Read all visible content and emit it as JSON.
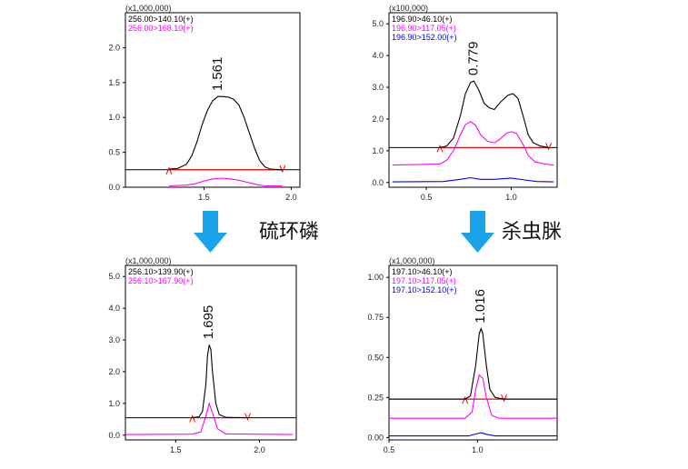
{
  "labels": {
    "compound_left": "硫环磷",
    "compound_right": "杀虫脒"
  },
  "colors": {
    "black": "#000000",
    "magenta": "#ff00ff",
    "blue": "#0000ff",
    "red": "#ff0000",
    "arrow": "#1aa3e8"
  },
  "chart_data": [
    {
      "type": "line",
      "multiplier": "(x1,000,000)",
      "peak_label": "1.561",
      "ylim": [
        0,
        2.5
      ],
      "yticks": [
        "0.0",
        "0.5",
        "1.0",
        "1.5",
        "2.0"
      ],
      "xlim": [
        1.05,
        2.05
      ],
      "xticks": [
        "1.5",
        "2.0"
      ],
      "baseline": 0.25,
      "baseline_span": [
        1.3,
        1.95
      ],
      "series": [
        {
          "name": "256.00>140.10(+)",
          "color": "black",
          "points": [
            [
              1.3,
              0.26
            ],
            [
              1.35,
              0.27
            ],
            [
              1.4,
              0.33
            ],
            [
              1.43,
              0.45
            ],
            [
              1.46,
              0.65
            ],
            [
              1.49,
              0.9
            ],
            [
              1.52,
              1.1
            ],
            [
              1.55,
              1.24
            ],
            [
              1.58,
              1.3
            ],
            [
              1.61,
              1.3
            ],
            [
              1.64,
              1.29
            ],
            [
              1.67,
              1.26
            ],
            [
              1.7,
              1.18
            ],
            [
              1.73,
              1.0
            ],
            [
              1.76,
              0.78
            ],
            [
              1.79,
              0.56
            ],
            [
              1.82,
              0.38
            ],
            [
              1.85,
              0.29
            ],
            [
              1.88,
              0.26
            ],
            [
              1.95,
              0.25
            ]
          ]
        },
        {
          "name": "256.00>168.10(+)",
          "color": "magenta",
          "points": [
            [
              1.3,
              0.02
            ],
            [
              1.4,
              0.03
            ],
            [
              1.45,
              0.05
            ],
            [
              1.5,
              0.09
            ],
            [
              1.55,
              0.12
            ],
            [
              1.6,
              0.13
            ],
            [
              1.65,
              0.12
            ],
            [
              1.7,
              0.1
            ],
            [
              1.75,
              0.07
            ],
            [
              1.8,
              0.04
            ],
            [
              1.85,
              0.02
            ],
            [
              1.95,
              0.02
            ]
          ]
        }
      ]
    },
    {
      "type": "line",
      "multiplier": "(x100,000)",
      "peak_label": "0.779",
      "ylim": [
        -0.15,
        5.35
      ],
      "yticks": [
        "0.0",
        "1.0",
        "2.0",
        "3.0",
        "4.0",
        "5.0"
      ],
      "xlim": [
        0.28,
        1.27
      ],
      "xticks": [
        "0.5",
        "1.0"
      ],
      "baseline": 1.1,
      "baseline_span": [
        0.58,
        1.22
      ],
      "series": [
        {
          "name": "196.90>46.10(+)",
          "color": "black",
          "points": [
            [
              0.58,
              1.1
            ],
            [
              0.62,
              1.15
            ],
            [
              0.66,
              1.4
            ],
            [
              0.7,
              2.1
            ],
            [
              0.73,
              2.8
            ],
            [
              0.76,
              3.15
            ],
            [
              0.78,
              3.2
            ],
            [
              0.81,
              2.9
            ],
            [
              0.84,
              2.5
            ],
            [
              0.87,
              2.35
            ],
            [
              0.9,
              2.3
            ],
            [
              0.94,
              2.55
            ],
            [
              0.98,
              2.75
            ],
            [
              1.01,
              2.8
            ],
            [
              1.04,
              2.65
            ],
            [
              1.07,
              2.1
            ],
            [
              1.1,
              1.5
            ],
            [
              1.13,
              1.25
            ],
            [
              1.17,
              1.15
            ],
            [
              1.22,
              1.1
            ]
          ]
        },
        {
          "name": "196.90>117.05(+)",
          "color": "magenta",
          "points": [
            [
              0.3,
              0.55
            ],
            [
              0.58,
              0.58
            ],
            [
              0.62,
              0.7
            ],
            [
              0.66,
              1.0
            ],
            [
              0.7,
              1.5
            ],
            [
              0.73,
              1.82
            ],
            [
              0.76,
              1.92
            ],
            [
              0.79,
              1.8
            ],
            [
              0.82,
              1.5
            ],
            [
              0.86,
              1.3
            ],
            [
              0.9,
              1.25
            ],
            [
              0.93,
              1.35
            ],
            [
              0.97,
              1.55
            ],
            [
              1.0,
              1.6
            ],
            [
              1.03,
              1.55
            ],
            [
              1.07,
              1.2
            ],
            [
              1.1,
              0.85
            ],
            [
              1.14,
              0.65
            ],
            [
              1.2,
              0.58
            ],
            [
              1.25,
              0.55
            ]
          ]
        },
        {
          "name": "196.90>152.00(+)",
          "color": "blue",
          "points": [
            [
              0.3,
              0.02
            ],
            [
              0.6,
              0.03
            ],
            [
              0.7,
              0.1
            ],
            [
              0.76,
              0.15
            ],
            [
              0.82,
              0.1
            ],
            [
              0.9,
              0.1
            ],
            [
              1.0,
              0.14
            ],
            [
              1.08,
              0.08
            ],
            [
              1.15,
              0.03
            ],
            [
              1.25,
              0.02
            ]
          ]
        }
      ]
    },
    {
      "type": "line",
      "multiplier": "(x1,000,000)",
      "peak_label": "1.695",
      "ylim": [
        -0.15,
        5.35
      ],
      "yticks": [
        "0.0",
        "1.0",
        "2.0",
        "3.0",
        "4.0",
        "5.0"
      ],
      "xlim": [
        1.2,
        2.22
      ],
      "xticks": [
        "1.5",
        "2.0"
      ],
      "baseline": 0.55,
      "baseline_span": [
        1.6,
        1.93
      ],
      "series": [
        {
          "name": "256.10>139.90(+)",
          "color": "black",
          "points": [
            [
              1.6,
              0.55
            ],
            [
              1.64,
              0.58
            ],
            [
              1.66,
              0.75
            ],
            [
              1.68,
              1.6
            ],
            [
              1.69,
              2.5
            ],
            [
              1.7,
              2.85
            ],
            [
              1.71,
              2.7
            ],
            [
              1.72,
              2.0
            ],
            [
              1.74,
              1.0
            ],
            [
              1.76,
              0.65
            ],
            [
              1.8,
              0.56
            ],
            [
              1.93,
              0.55
            ]
          ]
        },
        {
          "name": "256.10>167.90(+)",
          "color": "magenta",
          "points": [
            [
              1.2,
              0.02
            ],
            [
              1.6,
              0.03
            ],
            [
              1.65,
              0.1
            ],
            [
              1.68,
              0.6
            ],
            [
              1.7,
              1.0
            ],
            [
              1.72,
              0.7
            ],
            [
              1.75,
              0.2
            ],
            [
              1.8,
              0.04
            ],
            [
              2.2,
              0.02
            ]
          ]
        }
      ]
    },
    {
      "type": "line",
      "multiplier": "(x1,000,000)",
      "peak_label": "1.016",
      "ylim": [
        -0.015,
        1.075
      ],
      "yticks": [
        "0.00",
        "0.25",
        "0.50",
        "0.75",
        "1.00"
      ],
      "xlim": [
        0.5,
        1.45
      ],
      "xticks": [
        "0.5",
        "1.0"
      ],
      "baseline": 0.24,
      "baseline_span": [
        0.93,
        1.15
      ],
      "series": [
        {
          "name": "197.10>46.10(+)",
          "color": "black",
          "points": [
            [
              0.5,
              0.24
            ],
            [
              0.93,
              0.24
            ],
            [
              0.96,
              0.26
            ],
            [
              0.99,
              0.45
            ],
            [
              1.01,
              0.65
            ],
            [
              1.02,
              0.68
            ],
            [
              1.03,
              0.65
            ],
            [
              1.05,
              0.45
            ],
            [
              1.07,
              0.3
            ],
            [
              1.1,
              0.25
            ],
            [
              1.15,
              0.24
            ],
            [
              1.45,
              0.24
            ]
          ]
        },
        {
          "name": "197.10>117.05(+)",
          "color": "magenta",
          "points": [
            [
              0.5,
              0.12
            ],
            [
              0.93,
              0.12
            ],
            [
              0.97,
              0.16
            ],
            [
              0.99,
              0.3
            ],
            [
              1.01,
              0.39
            ],
            [
              1.03,
              0.37
            ],
            [
              1.05,
              0.25
            ],
            [
              1.08,
              0.14
            ],
            [
              1.12,
              0.12
            ],
            [
              1.45,
              0.12
            ]
          ]
        },
        {
          "name": "197.10>152.10(+)",
          "color": "blue",
          "points": [
            [
              0.5,
              0.01
            ],
            [
              0.95,
              0.01
            ],
            [
              1.0,
              0.025
            ],
            [
              1.02,
              0.03
            ],
            [
              1.05,
              0.02
            ],
            [
              1.1,
              0.01
            ],
            [
              1.45,
              0.01
            ]
          ]
        }
      ]
    }
  ]
}
